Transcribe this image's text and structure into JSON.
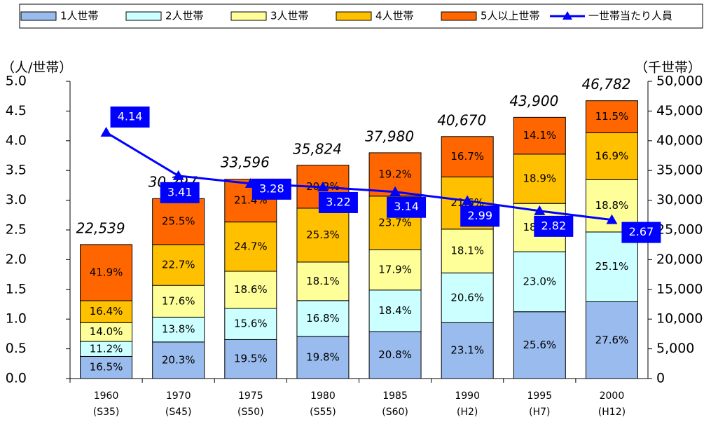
{
  "chart_data": {
    "type": "stacked-bar-line",
    "categories": [
      "1960",
      "1970",
      "1975",
      "1980",
      "1985",
      "1990",
      "1995",
      "2000"
    ],
    "era_labels": [
      "(S35)",
      "(S45)",
      "(S50)",
      "(S55)",
      "(S60)",
      "(H2)",
      "(H7)",
      "(H12)"
    ],
    "ylabel": "（人/世帯）",
    "y2label": "（千世帯）",
    "ylim": [
      0,
      5
    ],
    "yticks": [
      {
        "value": 0,
        "label": "0.0"
      },
      {
        "value": 0.5,
        "label": "0.5"
      },
      {
        "value": 1,
        "label": "1.0"
      },
      {
        "value": 1.5,
        "label": "1.5"
      },
      {
        "value": 2,
        "label": "2.0"
      },
      {
        "value": 2.5,
        "label": "2.5"
      },
      {
        "value": 3,
        "label": "3.0"
      },
      {
        "value": 3.5,
        "label": "3.5"
      },
      {
        "value": 4,
        "label": "4.0"
      },
      {
        "value": 4.5,
        "label": "4.5"
      },
      {
        "value": 5,
        "label": "5.0"
      }
    ],
    "y2lim": [
      0,
      50000
    ],
    "y2ticks": [
      0,
      {
        "value": 5000,
        "label": "5,000"
      },
      {
        "value": 10000,
        "label": "10,000"
      },
      {
        "value": 15000,
        "label": "15,000"
      },
      {
        "value": 20000,
        "label": "20,000"
      },
      {
        "value": 25000,
        "label": "25,000"
      },
      {
        "value": 30000,
        "label": "30,000"
      },
      {
        "value": 35000,
        "label": "35,000"
      },
      {
        "value": 40000,
        "label": "40,000"
      },
      {
        "value": 45000,
        "label": "45,000"
      },
      {
        "value": 50000,
        "label": "50,000"
      }
    ],
    "totals": {
      "values": [
        22539,
        30297,
        33596,
        35824,
        37980,
        40670,
        43900,
        46782
      ],
      "value_labels": [
        "22,539",
        "30,297",
        "33,596",
        "35,824",
        "37,980",
        "40,670",
        "43,900",
        "46,782"
      ]
    },
    "series": [
      {
        "name": "1人世帯",
        "color": "#99bbee",
        "unit": "%",
        "values": [
          16.5,
          20.3,
          19.5,
          19.8,
          20.8,
          23.1,
          25.6,
          27.6
        ],
        "value_labels": [
          "16.5%",
          "20.3%",
          "19.5%",
          "19.8%",
          "20.8%",
          "23.1%",
          "25.6%",
          "27.6%"
        ]
      },
      {
        "name": "2人世帯",
        "color": "#ccffff",
        "unit": "%",
        "values": [
          11.2,
          13.8,
          15.6,
          16.8,
          18.4,
          20.6,
          23.0,
          25.1
        ],
        "value_labels": [
          "11.2%",
          "13.8%",
          "15.6%",
          "16.8%",
          "18.4%",
          "20.6%",
          "23.0%",
          "25.1%"
        ]
      },
      {
        "name": "3人世帯",
        "color": "#ffff99",
        "unit": "%",
        "values": [
          14.0,
          17.6,
          18.6,
          18.1,
          17.9,
          18.1,
          18.5,
          18.8
        ],
        "value_labels": [
          "14.0%",
          "17.6%",
          "18.6%",
          "18.1%",
          "17.9%",
          "18.1%",
          "18.5%",
          "18.8%"
        ]
      },
      {
        "name": "4人世帯",
        "color": "#ffc000",
        "unit": "%",
        "values": [
          16.4,
          22.7,
          24.7,
          25.3,
          23.7,
          21.6,
          18.9,
          16.9
        ],
        "value_labels": [
          "16.4%",
          "22.7%",
          "24.7%",
          "25.3%",
          "23.7%",
          "21.6%",
          "18.9%",
          "16.9%"
        ]
      },
      {
        "name": "5人以上世帯",
        "color": "#ff6600",
        "unit": "%",
        "values": [
          41.9,
          25.5,
          21.4,
          20.2,
          19.2,
          16.7,
          14.1,
          11.5
        ],
        "value_labels": [
          "41.9%",
          "25.5%",
          "21.4%",
          "20.2%",
          "19.2%",
          "16.7%",
          "14.1%",
          "11.5%"
        ]
      },
      {
        "name": "一世帯当たり人員",
        "color": "#0000ff",
        "type": "line",
        "axis": "y",
        "values": [
          4.14,
          3.41,
          3.28,
          3.22,
          3.14,
          2.99,
          2.82,
          2.67
        ]
      }
    ]
  }
}
